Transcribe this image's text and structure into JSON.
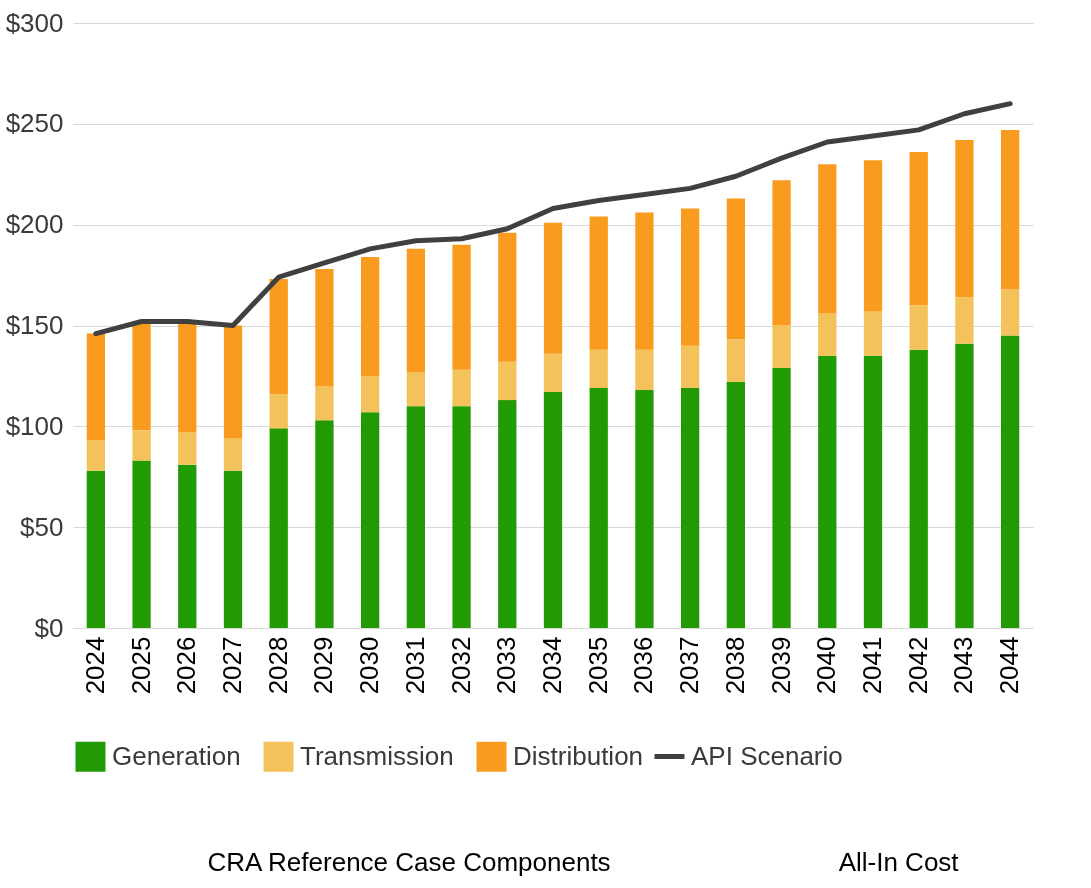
{
  "chart_data": {
    "type": "bar",
    "stacked": true,
    "categories": [
      "2024",
      "2025",
      "2026",
      "2027",
      "2028",
      "2029",
      "2030",
      "2031",
      "2032",
      "2033",
      "2034",
      "2035",
      "2036",
      "2037",
      "2038",
      "2039",
      "2040",
      "2041",
      "2042",
      "2043",
      "2044"
    ],
    "series": [
      {
        "name": "Generation",
        "color": "#229a04",
        "values": [
          78,
          83,
          81,
          78,
          99,
          103,
          107,
          110,
          110,
          113,
          117,
          119,
          118,
          119,
          122,
          129,
          135,
          135,
          138,
          141,
          145
        ]
      },
      {
        "name": "Transmission",
        "color": "#f4c25a",
        "values": [
          15,
          15,
          16,
          16,
          17,
          17,
          18,
          17,
          18,
          19,
          19,
          19,
          20,
          21,
          21,
          21,
          21,
          22,
          22,
          23,
          23
        ]
      },
      {
        "name": "Distribution",
        "color": "#f89b1e",
        "values": [
          53,
          53,
          54,
          56,
          57,
          58,
          59,
          61,
          62,
          64,
          65,
          66,
          68,
          68,
          70,
          72,
          74,
          75,
          76,
          78,
          79
        ]
      },
      {
        "name": "API Scenario",
        "type": "line",
        "color": "#404040",
        "values": [
          146,
          152,
          152,
          150,
          174,
          181,
          188,
          192,
          193,
          198,
          208,
          212,
          215,
          218,
          224,
          233,
          241,
          244,
          247,
          255,
          260
        ]
      }
    ],
    "ylim": [
      0,
      300
    ],
    "yticks": [
      {
        "value": 0,
        "label": "$0"
      },
      {
        "value": 50,
        "label": "$50"
      },
      {
        "value": 100,
        "label": "$100"
      },
      {
        "value": 150,
        "label": "$150"
      },
      {
        "value": 200,
        "label": "$200"
      },
      {
        "value": 250,
        "label": "$250"
      },
      {
        "value": 300,
        "label": "$300"
      }
    ],
    "grid": "y",
    "legend": "bottom",
    "marker": "none",
    "line_style": "solid",
    "annotations": [
      "CRA Reference Case Components",
      "All-In Cost"
    ]
  }
}
